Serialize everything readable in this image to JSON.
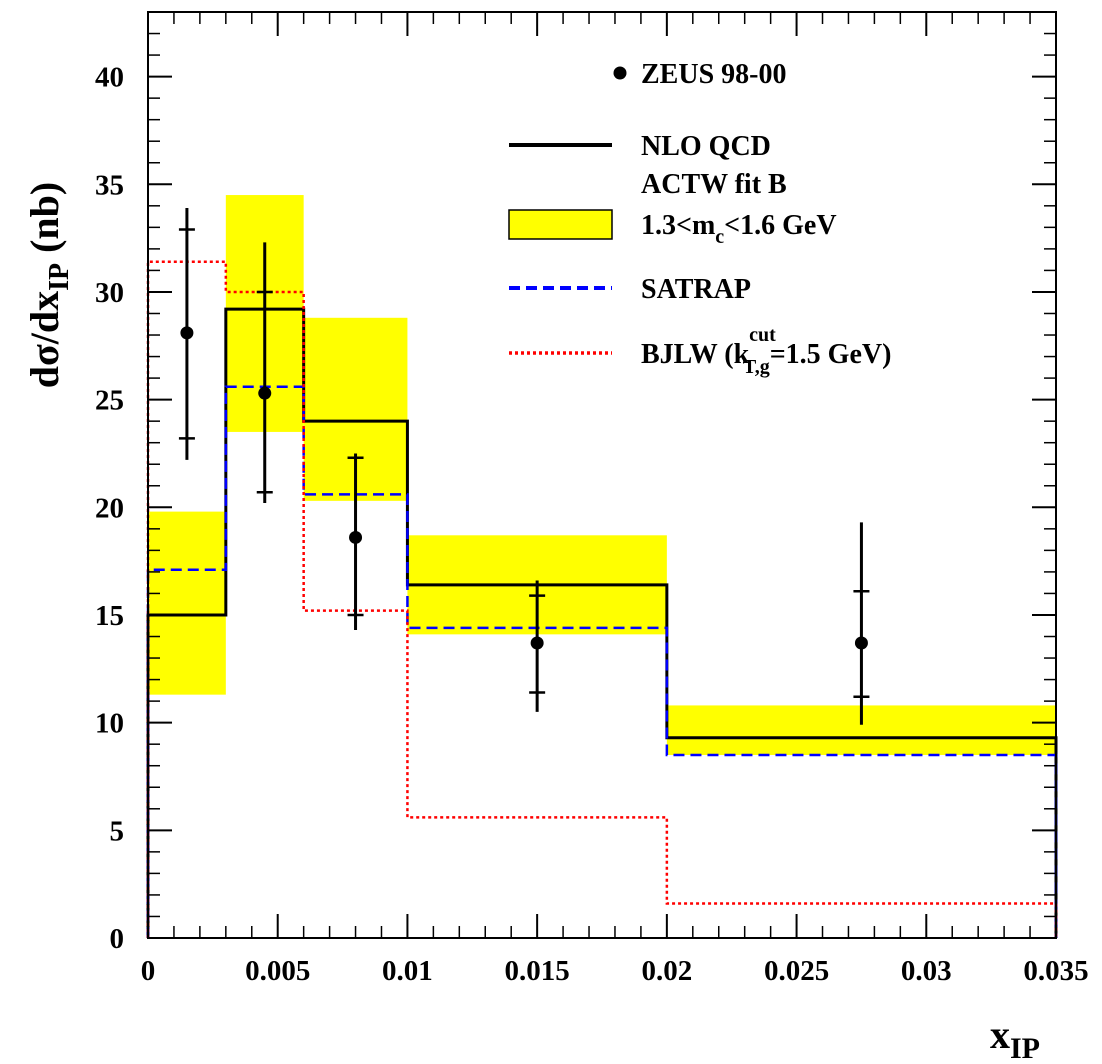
{
  "chart_data": {
    "type": "histogram-with-points",
    "xlabel": {
      "base": "x",
      "sub": "IP"
    },
    "ylabel": {
      "prefix": "dσ/dx",
      "sub": "IP",
      "suffix": " (nb)"
    },
    "xlim": [
      0,
      0.035
    ],
    "ylim": [
      0,
      43
    ],
    "x_ticks": [
      0,
      0.005,
      0.01,
      0.015,
      0.02,
      0.025,
      0.03,
      0.035
    ],
    "x_tick_labels": [
      "0",
      "0.005",
      "0.01",
      "0.015",
      "0.02",
      "0.025",
      "0.03",
      "0.035"
    ],
    "y_ticks": [
      0,
      5,
      10,
      15,
      20,
      25,
      30,
      35,
      40
    ],
    "y_tick_labels": [
      "0",
      "5",
      "10",
      "15",
      "20",
      "25",
      "30",
      "35",
      "40"
    ],
    "bin_edges": [
      0,
      0.003,
      0.006,
      0.01,
      0.02,
      0.035
    ],
    "band": {
      "color": "#ffff00",
      "lower": [
        11.3,
        23.5,
        20.3,
        14.1,
        8.5
      ],
      "upper": [
        19.8,
        34.5,
        28.8,
        18.7,
        10.8
      ]
    },
    "series": [
      {
        "key": "nlo",
        "color": "#000000",
        "style": "solid",
        "values": [
          15.0,
          29.2,
          24.0,
          16.4,
          9.3
        ]
      },
      {
        "key": "satrap",
        "color": "#0000ff",
        "style": "dashed",
        "values": [
          17.1,
          25.6,
          20.6,
          14.4,
          8.5
        ]
      },
      {
        "key": "bjlw",
        "color": "#ff0000",
        "style": "dotted",
        "values": [
          31.4,
          30.0,
          15.2,
          5.6,
          1.6
        ]
      }
    ],
    "points": {
      "color": "#000000",
      "data": [
        {
          "x": 0.0015,
          "y": 28.1,
          "stat_lo": 23.2,
          "stat_hi": 32.9,
          "tot_lo": 22.2,
          "tot_hi": 33.9
        },
        {
          "x": 0.0045,
          "y": 25.3,
          "stat_lo": 20.7,
          "stat_hi": 30.0,
          "tot_lo": 20.2,
          "tot_hi": 32.3
        },
        {
          "x": 0.008,
          "y": 18.6,
          "stat_lo": 15.0,
          "stat_hi": 22.3,
          "tot_lo": 14.3,
          "tot_hi": 22.5
        },
        {
          "x": 0.015,
          "y": 13.7,
          "stat_lo": 11.4,
          "stat_hi": 15.9,
          "tot_lo": 10.5,
          "tot_hi": 16.6
        },
        {
          "x": 0.0275,
          "y": 13.7,
          "stat_lo": 11.2,
          "stat_hi": 16.1,
          "tot_lo": 9.9,
          "tot_hi": 19.3
        }
      ]
    },
    "legend": {
      "placement": "top-right",
      "entries": {
        "data": "ZEUS 98-00",
        "nlo_1": "NLO QCD",
        "nlo_2": "ACTW fit B",
        "band_pre": "1.3<m",
        "band_sub": "c",
        "band_post": "<1.6 GeV",
        "satrap": "SATRAP",
        "bjlw_pre": "BJLW (k",
        "bjlw_sup": "cut",
        "bjlw_sub": "T,g",
        "bjlw_post": "=1.5 GeV)"
      }
    }
  }
}
